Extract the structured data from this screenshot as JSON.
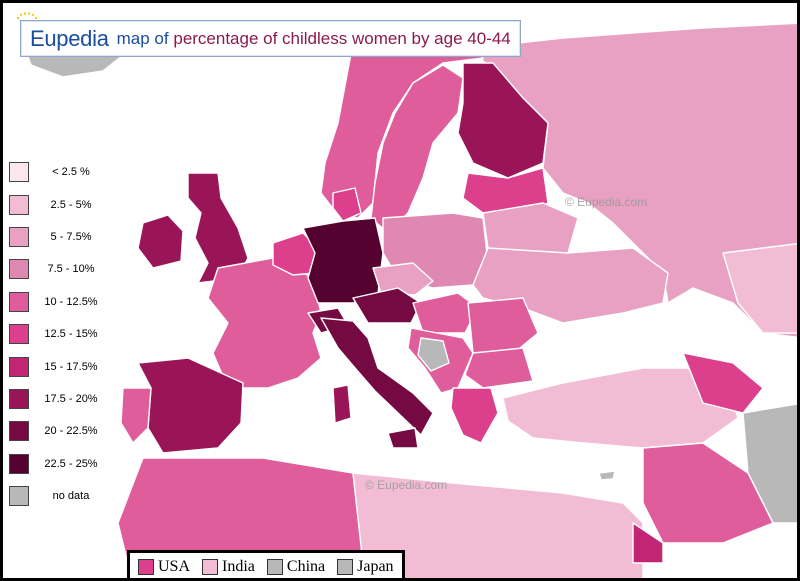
{
  "title": {
    "brand": "Eupedia",
    "map_word": "map of",
    "rest": "percentage of childless women by age 40-44"
  },
  "watermarks": [
    "© Eupedia.com",
    "© Eupedia.com"
  ],
  "legend": [
    {
      "label": "< 2.5 %",
      "color": "#fbe6ef"
    },
    {
      "label": "2.5 - 5%",
      "color": "#f2bdd4"
    },
    {
      "label": "5 - 7.5%",
      "color": "#e8a1c2"
    },
    {
      "label": "7.5 - 10%",
      "color": "#df88b1"
    },
    {
      "label": "10 - 12.5%",
      "color": "#e05d9c"
    },
    {
      "label": "12.5 - 15%",
      "color": "#dc3f8c"
    },
    {
      "label": "15 - 17.5%",
      "color": "#c02674"
    },
    {
      "label": "17.5 - 20%",
      "color": "#9a1557"
    },
    {
      "label": "20 - 22.5%",
      "color": "#750a42"
    },
    {
      "label": "22.5 - 25%",
      "color": "#560231"
    },
    {
      "label": "no data",
      "color": "#b8b8b8"
    }
  ],
  "comparison": [
    {
      "label": "USA",
      "color": "#dc3f8c"
    },
    {
      "label": "India",
      "color": "#f2bdd4"
    },
    {
      "label": "China",
      "color": "#b8b8b8"
    },
    {
      "label": "Japan",
      "color": "#b8b8b8"
    }
  ],
  "colors": {
    "sea": "#ffffff",
    "border": "#ffffff",
    "title_blue": "#1a4d9c",
    "title_red": "#8b1a4a"
  }
}
